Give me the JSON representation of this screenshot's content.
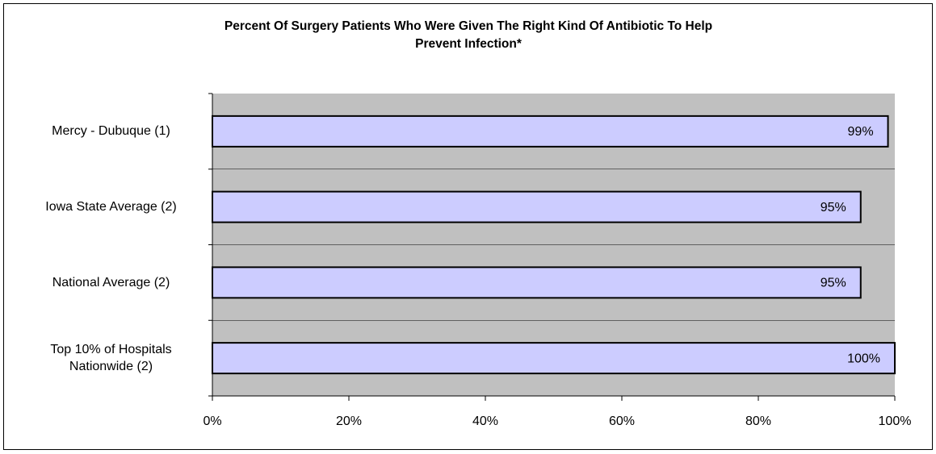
{
  "chart_data": {
    "type": "hbar",
    "title": "Percent Of Surgery Patients Who Were Given The Right Kind Of Antibiotic To Help\nPrevent Infection*",
    "categories": [
      "Mercy - Dubuque (1)",
      "Iowa State Average (2)",
      "National Average (2)",
      "Top 10% of Hospitals\nNationwide (2)"
    ],
    "values": [
      99,
      95,
      95,
      100
    ],
    "value_labels": [
      "99%",
      "95%",
      "95%",
      "100%"
    ],
    "color": "#ccccff",
    "xlim": [
      0,
      100
    ],
    "xticks": [
      {
        "value": 0,
        "label": "0%"
      },
      {
        "value": 20,
        "label": "20%"
      },
      {
        "value": 40,
        "label": "40%"
      },
      {
        "value": 60,
        "label": "60%"
      },
      {
        "value": 80,
        "label": "80%"
      },
      {
        "value": 100,
        "label": "100%"
      }
    ],
    "grid": true
  }
}
